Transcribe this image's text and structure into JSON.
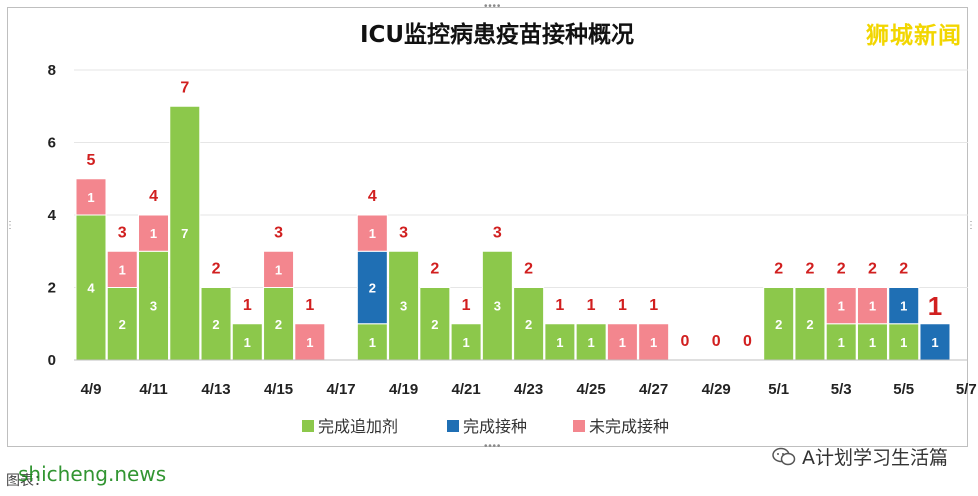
{
  "chart_data": {
    "type": "bar",
    "stacked": true,
    "title": "ICU监控病患疫苗接种概况",
    "ylim": [
      0,
      8
    ],
    "yticks": [
      0,
      2,
      4,
      6,
      8
    ],
    "grid": true,
    "legend_position": "bottom",
    "dates": [
      "4/9",
      "4/10",
      "4/11",
      "4/12",
      "4/13",
      "4/14",
      "4/15",
      "4/16",
      "4/17",
      "4/18",
      "4/19",
      "4/20",
      "4/21",
      "4/22",
      "4/23",
      "4/24",
      "4/25",
      "4/26",
      "4/27",
      "4/28",
      "4/29",
      "4/30",
      "5/1",
      "5/2",
      "5/3",
      "5/4",
      "5/5",
      "5/6",
      "5/7"
    ],
    "xtick_labels": [
      "4/9",
      "4/11",
      "4/13",
      "4/15",
      "4/17",
      "4/19",
      "4/21",
      "4/23",
      "4/25",
      "4/27",
      "4/29",
      "5/1",
      "5/3",
      "5/5",
      "5/7"
    ],
    "series": [
      {
        "name": "完成追加剂",
        "color": "#8cc84b",
        "values": [
          4,
          2,
          3,
          7,
          2,
          1,
          2,
          0,
          0,
          1,
          3,
          2,
          1,
          3,
          2,
          1,
          1,
          0,
          0,
          0,
          0,
          0,
          2,
          2,
          1,
          1,
          1,
          0,
          null
        ]
      },
      {
        "name": "完成接种",
        "color": "#1f6fb4",
        "values": [
          0,
          0,
          0,
          0,
          0,
          0,
          0,
          0,
          0,
          2,
          0,
          0,
          0,
          0,
          0,
          0,
          0,
          0,
          0,
          0,
          0,
          0,
          0,
          0,
          0,
          0,
          1,
          1,
          null
        ]
      },
      {
        "name": "未完成接种",
        "color": "#f3868e",
        "values": [
          1,
          1,
          1,
          0,
          0,
          0,
          1,
          1,
          0,
          1,
          0,
          0,
          0,
          0,
          0,
          0,
          0,
          1,
          1,
          0,
          0,
          0,
          0,
          0,
          1,
          1,
          0,
          0,
          null
        ]
      }
    ],
    "totals": [
      "5",
      "3",
      "4",
      "7",
      "2",
      "1",
      "3",
      "1",
      "",
      "4",
      "3",
      "2",
      "1",
      "3",
      "2",
      "1",
      "1",
      "1",
      "1",
      "0",
      "0",
      "0",
      "2",
      "2",
      "2",
      "2",
      "2",
      "1",
      ""
    ],
    "colors": {
      "grid": "#e6e6e6",
      "axis": "#bfbfbf",
      "total_label": "#d11f1f",
      "segment_label": "#ffffff"
    }
  },
  "brand": "狮城新闻",
  "source_label": "图表：",
  "watermark_left": "shicheng.news",
  "watermark_right": "A计划学习生活篇"
}
